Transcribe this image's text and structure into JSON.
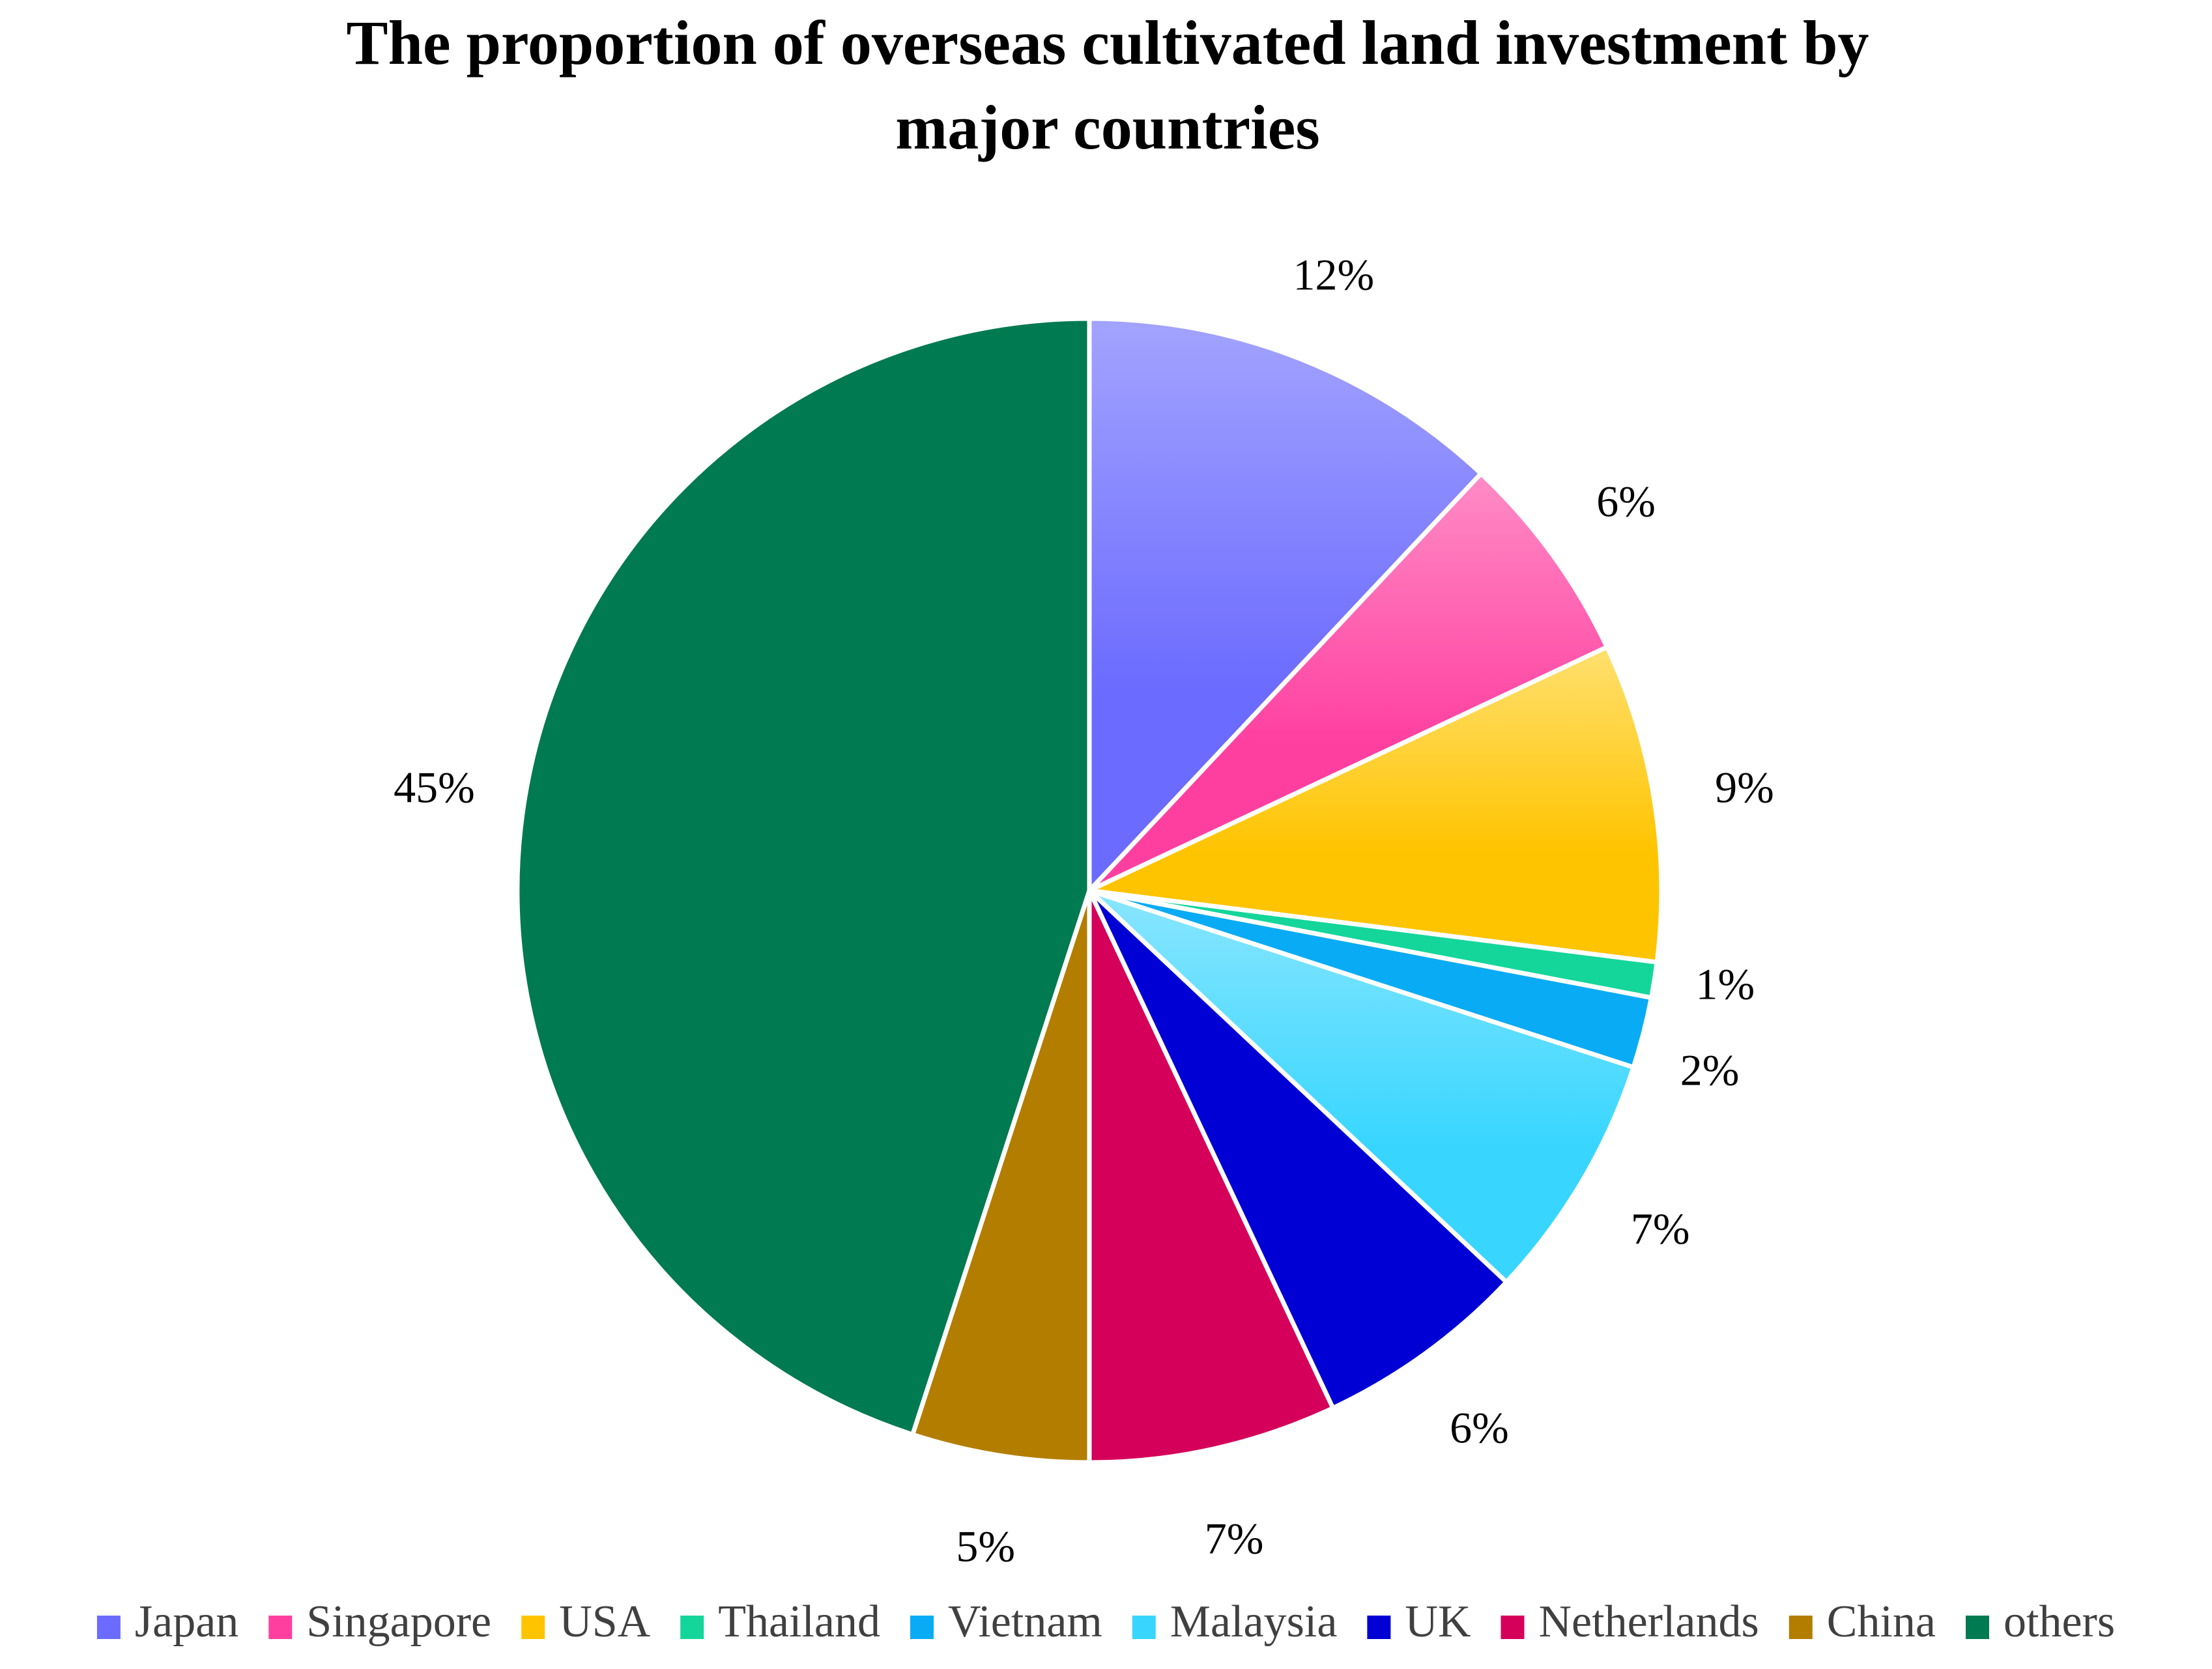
{
  "chart_data": {
    "type": "pie",
    "title_lines": [
      "The proportion of overseas cultivated land investment by",
      "major countries"
    ],
    "slices": [
      {
        "name": "Japan",
        "value": 12,
        "label": "12%",
        "color": "#6b6bff",
        "color_light": "#a3a3ff"
      },
      {
        "name": "Singapore",
        "value": 6,
        "label": "6%",
        "color": "#ff3fa0",
        "color_light": "#ff8cc6"
      },
      {
        "name": "USA",
        "value": 9,
        "label": "9%",
        "color": "#ffc400",
        "color_light": "#ffe070"
      },
      {
        "name": "Thailand",
        "value": 1,
        "label": "1%",
        "color": "#14d69a",
        "color_light": "#14d69a"
      },
      {
        "name": "Vietnam",
        "value": 2,
        "label": "2%",
        "color": "#0aabf5",
        "color_light": "#0aabf5"
      },
      {
        "name": "Malaysia",
        "value": 7,
        "label": "7%",
        "color": "#38d6ff",
        "color_light": "#8ae6ff"
      },
      {
        "name": "UK",
        "value": 6,
        "label": "6%",
        "color": "#0000d4",
        "color_light": "#0000d4"
      },
      {
        "name": "Netherlands",
        "value": 7,
        "label": "7%",
        "color": "#d4005a",
        "color_light": "#d4005a"
      },
      {
        "name": "China",
        "value": 5,
        "label": "5%",
        "color": "#b37d00",
        "color_light": "#b37d00"
      },
      {
        "name": "others",
        "value": 45,
        "label": "45%",
        "color": "#007a50",
        "color_light": "#007a50"
      }
    ],
    "legend_placement": "bottom",
    "start": "12 o'clock",
    "direction": "clockwise"
  }
}
